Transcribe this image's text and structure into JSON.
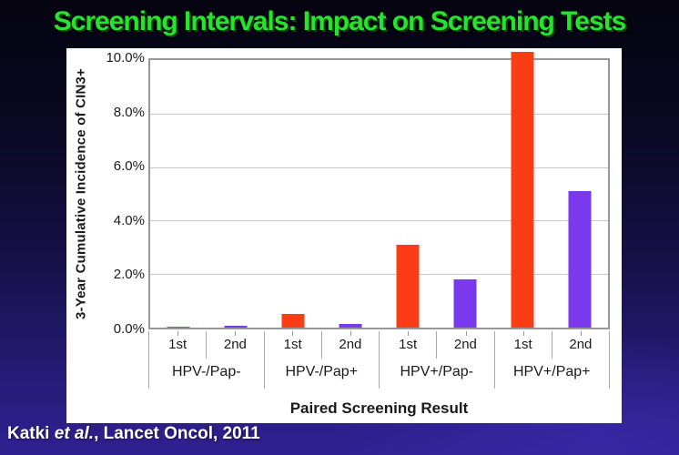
{
  "slide": {
    "title": "Screening Intervals: Impact on Screening Tests",
    "title_color": "#28e32c",
    "citation": {
      "prefix": "Katki ",
      "italic": "et al.",
      "suffix": ", Lancet Oncol, 2011"
    }
  },
  "chart_data": {
    "type": "bar",
    "title": "",
    "xlabel": "Paired Screening Result",
    "ylabel": "3-Year Cumulative Incidence of CIN3+",
    "ylim": [
      0,
      10
    ],
    "y_ticks": [
      "10.0%",
      "8.0%",
      "6.0%",
      "4.0%",
      "2.0%",
      "0.0%"
    ],
    "grid": true,
    "legend_position": "none",
    "categories": [
      "HPV-/Pap-",
      "HPV-/Pap+",
      "HPV+/Pap-",
      "HPV+/Pap+"
    ],
    "bar_sublabels": [
      "1st",
      "2nd"
    ],
    "series": [
      {
        "name": "1st",
        "color": "#fa3d14",
        "values": [
          0.05,
          0.5,
          3.1,
          10.3
        ]
      },
      {
        "name": "2nd",
        "color": "#7a39ec",
        "values": [
          0.08,
          0.15,
          1.8,
          5.1
        ]
      }
    ],
    "colors": {
      "gridline": "#c8c8c8",
      "axis": "#979797",
      "text": "#1a1a1a"
    }
  }
}
